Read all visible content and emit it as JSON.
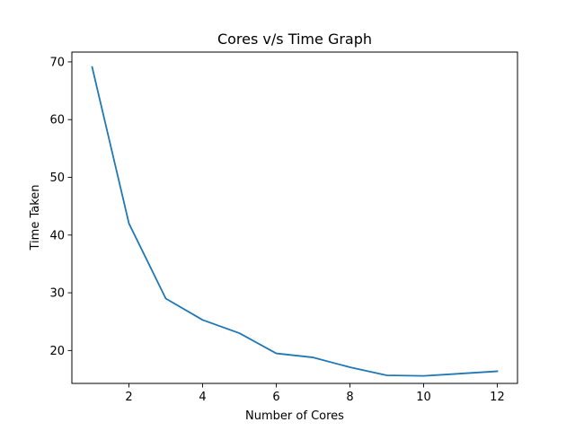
{
  "chart_data": {
    "type": "line",
    "title": "Cores v/s Time Graph",
    "xlabel": "Number of Cores",
    "ylabel": "Time Taken",
    "xlim": [
      0.45,
      12.55
    ],
    "ylim": [
      14.3,
      71.7
    ],
    "xticks": [
      2,
      4,
      6,
      8,
      10,
      12
    ],
    "yticks": [
      20,
      30,
      40,
      50,
      60,
      70
    ],
    "grid": false,
    "legend": "none",
    "series": [
      {
        "color": "#1f77b4",
        "x": [
          1,
          2,
          3,
          4,
          5,
          6,
          7,
          8,
          9,
          10,
          11,
          12
        ],
        "y": [
          69.1,
          42.0,
          29.0,
          25.3,
          23.0,
          19.5,
          18.8,
          17.1,
          15.7,
          15.6,
          16.0,
          16.4
        ]
      }
    ]
  }
}
